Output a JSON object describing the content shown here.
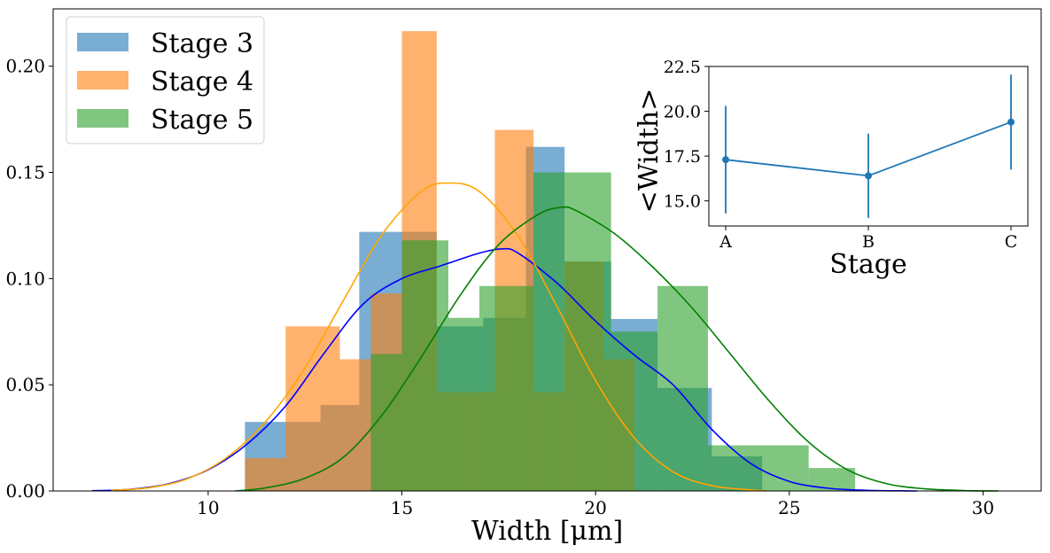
{
  "chart_data": [
    {
      "type": "histogram",
      "xlabel": "Width [μm]",
      "ylabel": "",
      "xlim": [
        6.0,
        31.5
      ],
      "ylim": [
        0.0,
        0.227
      ],
      "xticks": [
        10,
        15,
        20,
        25,
        30
      ],
      "yticks": [
        0.0,
        0.05,
        0.1,
        0.15,
        0.2
      ],
      "xtick_labels": [
        "10",
        "15",
        "20",
        "25",
        "30"
      ],
      "ytick_labels": [
        "0.00",
        "0.05",
        "0.10",
        "0.15",
        "0.20"
      ],
      "legend": {
        "placement": "upper-left",
        "entries": [
          "Stage 3",
          "Stage 4",
          "Stage 5"
        ]
      },
      "series": [
        {
          "name": "Stage 3",
          "color": "#1f77b4",
          "bins": [
            {
              "x0": 10.95,
              "x1": 12.9,
              "value": 0.0325
            },
            {
              "x0": 12.9,
              "x1": 13.9,
              "value": 0.0405
            },
            {
              "x0": 13.9,
              "x1": 15.9,
              "value": 0.122
            },
            {
              "x0": 15.9,
              "x1": 17.1,
              "value": 0.0775
            },
            {
              "x0": 17.1,
              "x1": 18.2,
              "value": 0.0815
            },
            {
              "x0": 18.2,
              "x1": 19.2,
              "value": 0.162
            },
            {
              "x0": 19.2,
              "x1": 20.4,
              "value": 0.108
            },
            {
              "x0": 20.4,
              "x1": 21.6,
              "value": 0.081
            },
            {
              "x0": 21.6,
              "x1": 23.0,
              "value": 0.0485
            },
            {
              "x0": 23.0,
              "x1": 24.3,
              "value": 0.0163
            }
          ],
          "kde_color": "#0000ff",
          "kde": {
            "x": [
              7,
              8,
              9,
              10,
              11,
              12,
              13,
              14,
              15,
              16,
              17,
              17.6,
              18,
              19,
              20,
              21,
              22,
              23,
              24,
              25,
              26,
              27,
              28.3
            ],
            "y": [
              0.0001,
              0.0008,
              0.0035,
              0.01,
              0.022,
              0.04,
              0.065,
              0.088,
              0.1,
              0.106,
              0.112,
              0.114,
              0.112,
              0.098,
              0.08,
              0.064,
              0.05,
              0.029,
              0.013,
              0.0045,
              0.0013,
              0.0003,
              0.0
            ]
          }
        },
        {
          "name": "Stage 4",
          "color": "#ff7f0e",
          "bins": [
            {
              "x0": 10.95,
              "x1": 12.0,
              "value": 0.0155
            },
            {
              "x0": 12.0,
              "x1": 13.4,
              "value": 0.0775
            },
            {
              "x0": 13.4,
              "x1": 14.2,
              "value": 0.062
            },
            {
              "x0": 14.2,
              "x1": 15.0,
              "value": 0.093
            },
            {
              "x0": 15.0,
              "x1": 15.9,
              "value": 0.2165
            },
            {
              "x0": 15.9,
              "x1": 17.4,
              "value": 0.0465
            },
            {
              "x0": 17.4,
              "x1": 18.4,
              "value": 0.17
            },
            {
              "x0": 18.4,
              "x1": 19.2,
              "value": 0.0465
            },
            {
              "x0": 19.2,
              "x1": 20.2,
              "value": 0.108
            },
            {
              "x0": 20.2,
              "x1": 21.0,
              "value": 0.062
            }
          ],
          "kde_color": "#ffa500",
          "kde": {
            "x": [
              7.5,
              8.5,
              9.5,
              10.5,
              11.5,
              12.5,
              13.5,
              14.5,
              15.5,
              16.2,
              17,
              18,
              19,
              20,
              21,
              22,
              23,
              24,
              24.4
            ],
            "y": [
              0.0003,
              0.0016,
              0.006,
              0.016,
              0.033,
              0.058,
              0.09,
              0.121,
              0.141,
              0.145,
              0.141,
              0.12,
              0.087,
              0.052,
              0.025,
              0.009,
              0.0025,
              0.0005,
              0.0
            ]
          }
        },
        {
          "name": "Stage 5",
          "color": "#2ca02c",
          "bins": [
            {
              "x0": 14.2,
              "x1": 15.0,
              "value": 0.0645
            },
            {
              "x0": 15.0,
              "x1": 16.2,
              "value": 0.118
            },
            {
              "x0": 16.2,
              "x1": 17.0,
              "value": 0.0815
            },
            {
              "x0": 17.0,
              "x1": 18.4,
              "value": 0.0965
            },
            {
              "x0": 18.4,
              "x1": 19.2,
              "value": 0.15
            },
            {
              "x0": 19.2,
              "x1": 20.4,
              "value": 0.15
            },
            {
              "x0": 20.4,
              "x1": 21.6,
              "value": 0.075
            },
            {
              "x0": 21.6,
              "x1": 22.9,
              "value": 0.0965
            },
            {
              "x0": 22.9,
              "x1": 25.5,
              "value": 0.0215
            },
            {
              "x0": 25.5,
              "x1": 26.7,
              "value": 0.0108
            }
          ],
          "kde_color": "#008000",
          "kde": {
            "x": [
              10.7,
              11.5,
              12.5,
              13.5,
              14.5,
              15.5,
              16.5,
              17.5,
              18.5,
              19.1,
              19.5,
              20.5,
              21.5,
              22.5,
              23.5,
              24.5,
              25.5,
              26.5,
              27.5,
              28.5,
              29.5,
              30.4
            ],
            "y": [
              0.0,
              0.0015,
              0.006,
              0.016,
              0.036,
              0.063,
              0.092,
              0.116,
              0.13,
              0.1335,
              0.132,
              0.121,
              0.105,
              0.086,
              0.064,
              0.042,
              0.023,
              0.01,
              0.0035,
              0.001,
              0.0002,
              0.0
            ]
          }
        }
      ]
    },
    {
      "type": "line",
      "xlabel": "Stage",
      "ylabel": "<Width>",
      "categories": [
        "A",
        "B",
        "C"
      ],
      "ylim": [
        13.6,
        22.5
      ],
      "yticks": [
        15.0,
        17.5,
        20.0,
        22.5
      ],
      "ytick_labels": [
        "15.0",
        "17.5",
        "20.0",
        "22.5"
      ],
      "color": "#1f77b4",
      "values": [
        17.3,
        16.4,
        19.4
      ],
      "errors": [
        3.0,
        2.35,
        2.65
      ]
    }
  ]
}
